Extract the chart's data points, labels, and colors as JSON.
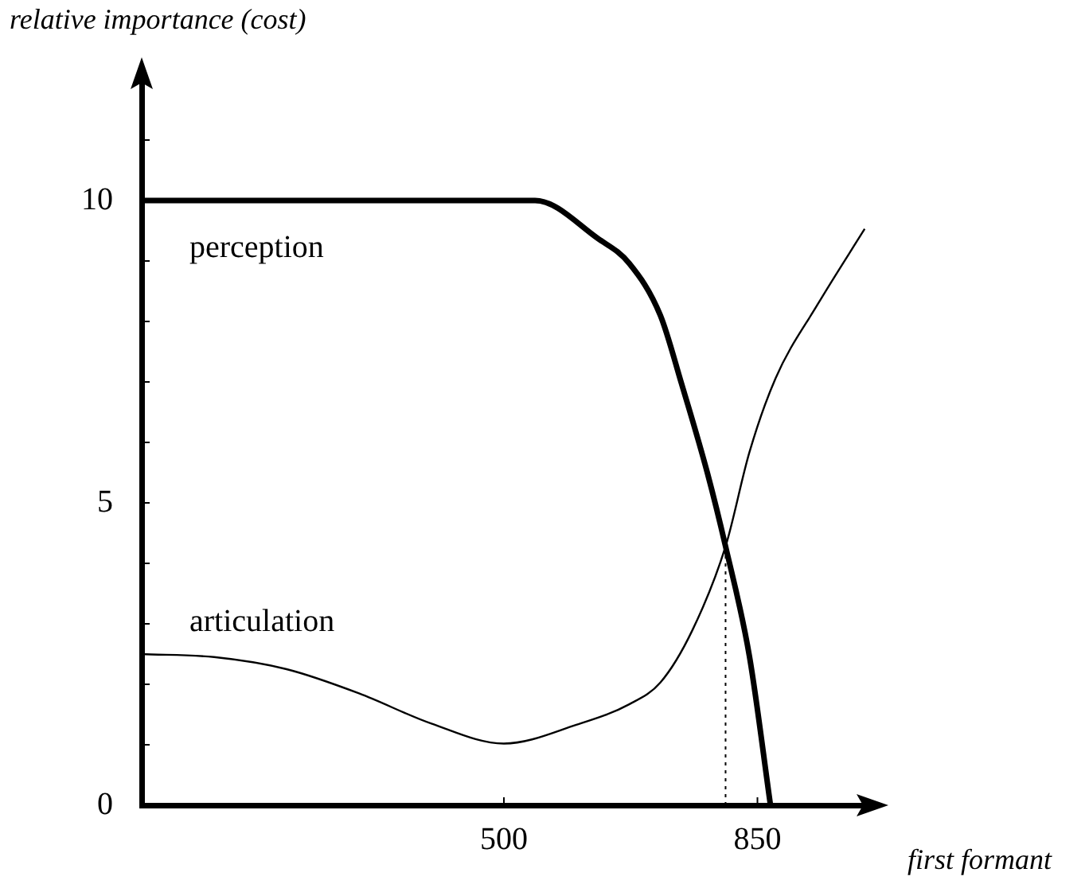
{
  "chart_data": {
    "type": "line",
    "xlabel": "first formant",
    "ylabel": "relative importance (cost)",
    "xlim": [
      0,
      1000
    ],
    "ylim": [
      0,
      12
    ],
    "xticks": [
      500,
      850
    ],
    "yticks": [
      0,
      {
        "value": 1,
        "label": null
      },
      {
        "value": 2,
        "label": null
      },
      {
        "value": 3,
        "label": null
      },
      {
        "value": 4,
        "label": null
      },
      5,
      {
        "value": 6,
        "label": null
      },
      {
        "value": 7,
        "label": null
      },
      {
        "value": 8,
        "label": null
      },
      {
        "value": 9,
        "label": null
      },
      10,
      {
        "value": 11,
        "label": null
      }
    ],
    "grid": false,
    "legend": false,
    "marker": "none",
    "line_style": "solid",
    "series": [
      {
        "name": "perception",
        "color": "#000000",
        "x": [
          0,
          543,
          630,
          673,
          716,
          745,
          781,
          806,
          839,
          868
        ],
        "values": [
          10,
          10,
          9.37,
          8.96,
          8.1,
          6.98,
          5.49,
          4.28,
          2.46,
          0
        ]
      },
      {
        "name": "articulation",
        "color": "#000000",
        "x": [
          0,
          100,
          200,
          300,
          400,
          500,
          600,
          673,
          716,
          760,
          806,
          839,
          875,
          933,
          998
        ],
        "values": [
          2.5,
          2.45,
          2.25,
          1.85,
          1.35,
          1.02,
          1.33,
          1.67,
          2.03,
          2.89,
          4.28,
          5.84,
          7.06,
          8.28,
          9.53
        ]
      }
    ],
    "ref_lines": [
      {
        "axis": "x",
        "value": 806,
        "line_style": "dotted",
        "color": "#000000"
      }
    ]
  }
}
